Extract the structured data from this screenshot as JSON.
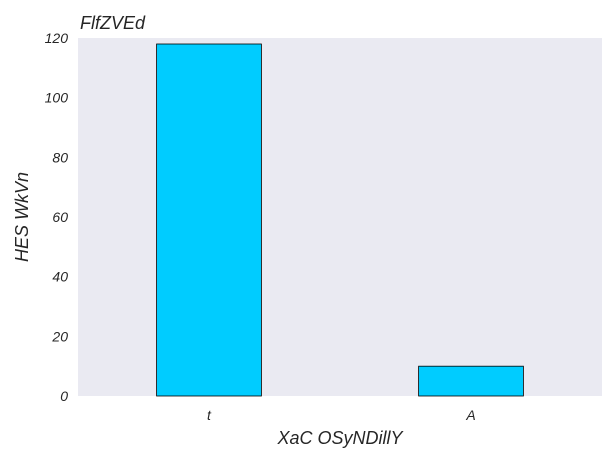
{
  "chart_data": {
    "type": "bar",
    "title": "FlfZVEd",
    "xlabel": "XaC OSyNDillY",
    "ylabel": "HES WkVn",
    "categories": [
      "t",
      "A"
    ],
    "values": [
      118,
      10
    ],
    "ylim": [
      0,
      120
    ],
    "yticks": [
      0,
      20,
      40,
      60,
      80,
      100,
      120
    ],
    "grid": false,
    "bar_color": "#00ccff",
    "bar_edge_color": "#000000",
    "plot_background": "#eaeaf2"
  }
}
